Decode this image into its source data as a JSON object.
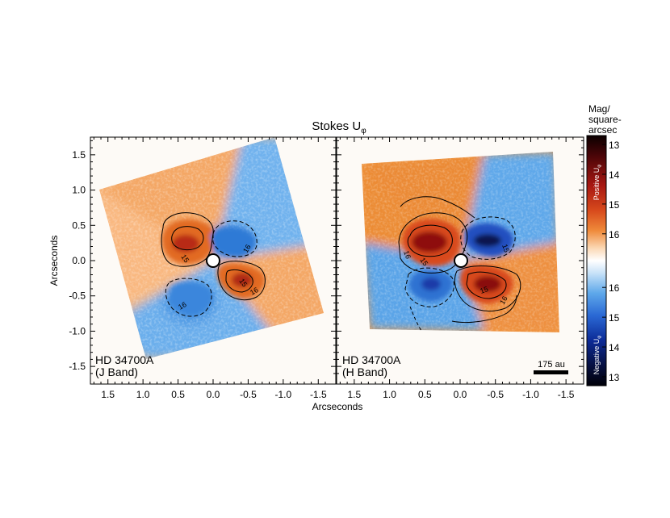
{
  "figure": {
    "title_main": "Stokes U",
    "title_sub": "φ",
    "x_axis_label": "Arcseconds",
    "y_axis_label": "Arcseconds",
    "scale_bar_label": "175 au",
    "colorbar": {
      "title_lines": [
        "Mag/",
        "square-",
        "arcsec"
      ],
      "positive_label": "Positive U",
      "negative_label": "Negative U",
      "label_sub": "φ",
      "positive_ticks": [
        "13",
        "14",
        "15",
        "16"
      ],
      "negative_ticks": [
        "16",
        "15",
        "14",
        "13"
      ],
      "positive_tick_values": [
        13,
        14,
        15,
        16
      ],
      "negative_tick_values": [
        16,
        15,
        14,
        13
      ],
      "range": [
        12.7,
        16.9
      ]
    },
    "colors": {
      "positive_light": "#f5a868",
      "positive_mid": "#e8732a",
      "positive_strong": "#b81f10",
      "positive_peak": "#5a0808",
      "negative_light": "#b3d6f5",
      "negative_mid": "#4d9ae6",
      "negative_strong": "#1c45b8",
      "negative_peak": "#081850",
      "background": "#fdfaf6"
    }
  },
  "chart_data": [
    {
      "type": "heatmap",
      "panel": "left",
      "target_lines": [
        "HD 34700A",
        "(J Band)"
      ],
      "x_ticks": [
        1.5,
        1.0,
        0.5,
        0.0,
        -0.5,
        -1.0,
        -1.5
      ],
      "x_tick_labels": [
        "1.5",
        "1.0",
        "0.5",
        "0.0",
        "-0.5",
        "-1.0",
        "-1.5"
      ],
      "y_ticks": [
        1.5,
        1.0,
        0.5,
        0.0,
        -0.5,
        -1.0,
        -1.5
      ],
      "y_tick_labels": [
        "1.5",
        "1.0",
        "0.5",
        "0.0",
        "-0.5",
        "-1.0",
        "-1.5"
      ],
      "xlim": [
        1.75,
        -1.75
      ],
      "ylim": [
        -1.75,
        1.75
      ],
      "contour_labels": [
        "15",
        "15",
        "16",
        "16",
        "16"
      ]
    },
    {
      "type": "heatmap",
      "panel": "right",
      "target_lines": [
        "HD 34700A",
        "(H Band)"
      ],
      "x_ticks": [
        1.5,
        1.0,
        0.5,
        0.0,
        -0.5,
        -1.0,
        -1.5
      ],
      "x_tick_labels": [
        "1.5",
        "1.0",
        "0.5",
        "0.0",
        "-0.5",
        "-1.0",
        "-1.5"
      ],
      "xlim": [
        1.75,
        -1.75
      ],
      "ylim": [
        -1.75,
        1.75
      ],
      "contour_labels": [
        "15",
        "15",
        "15",
        "16",
        "16"
      ]
    }
  ]
}
